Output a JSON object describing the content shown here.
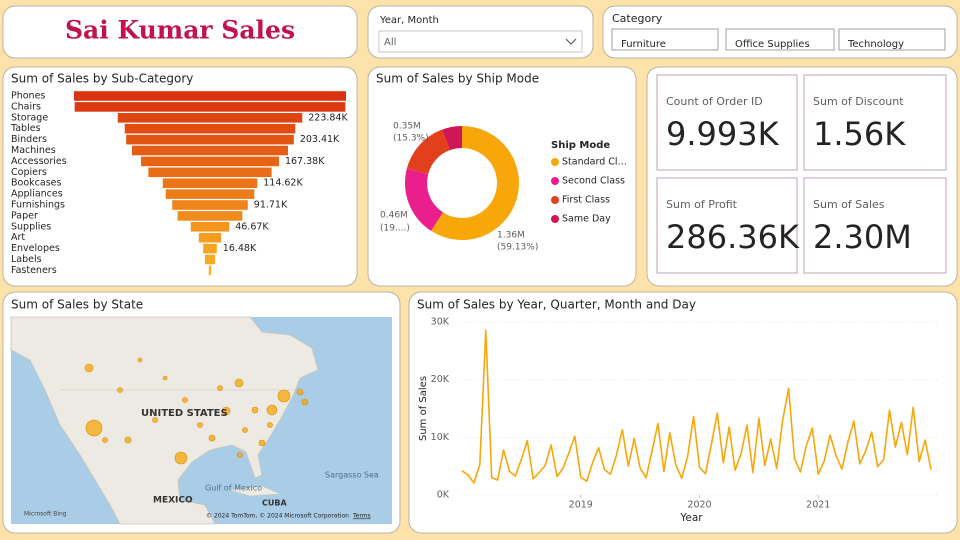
{
  "header": {
    "title": "Sai Kumar Sales"
  },
  "filters": {
    "year_month": {
      "label": "Year, Month",
      "value": "All"
    },
    "category": {
      "label": "Category",
      "options": [
        "Furniture",
        "Office Supplies",
        "Technology"
      ]
    }
  },
  "chart_data": [
    {
      "type": "funnel",
      "title": "Sum of Sales by Sub-Category",
      "categories": [
        "Phones",
        "Chairs",
        "Storage",
        "Tables",
        "Binders",
        "Machines",
        "Accessories",
        "Copiers",
        "Bookcases",
        "Appliances",
        "Furnishings",
        "Paper",
        "Supplies",
        "Art",
        "Envelopes",
        "Labels",
        "Fasteners"
      ],
      "values": [
        330010,
        328450,
        223840,
        206970,
        203410,
        189240,
        167380,
        149530,
        114620,
        107530,
        91710,
        78480,
        46670,
        27120,
        16480,
        12490,
        3020
      ],
      "value_labels": [
        null,
        null,
        "223.84K",
        null,
        "203.41K",
        null,
        "167.38K",
        null,
        "114.62K",
        null,
        "91.71K",
        null,
        "46.67K",
        null,
        "16.48K",
        null,
        null
      ],
      "colors": [
        "#d9340f",
        "#dc3a10",
        "#df4511",
        "#e14d12",
        "#e35413",
        "#e55c14",
        "#e76415",
        "#e96c16",
        "#eb7418",
        "#ed7c19",
        "#ef841b",
        "#f18c1c",
        "#f3951e",
        "#f49d1f",
        "#f5a521",
        "#f6ac22",
        "#f7b324"
      ]
    },
    {
      "type": "donut",
      "title": "Sum of Sales by Ship Mode",
      "legend_title": "Ship Mode",
      "categories": [
        "Standard Cl…",
        "Second Class",
        "First Class",
        "Same Day"
      ],
      "values": [
        1.36,
        0.46,
        0.35,
        0.13
      ],
      "value_labels": [
        "1.36M",
        "0.46M",
        "0.35M",
        null
      ],
      "percent_labels": [
        "(59.13%)",
        "(19....)",
        "(15.3%)",
        null
      ],
      "colors": [
        "#f7a70a",
        "#ea1e8c",
        "#e2401b",
        "#d01558"
      ]
    },
    {
      "type": "line",
      "title": "Sum of Sales by Year, Quarter, Month and Day",
      "x_label": "Year",
      "y_label": "Sum of Sales",
      "color": "#f7a70a",
      "x": [
        2018,
        2018.05,
        2018.1,
        2018.15,
        2018.2,
        2018.25,
        2018.3,
        2018.35,
        2018.4,
        2018.45,
        2018.5,
        2018.55,
        2018.6,
        2018.65,
        2018.7,
        2018.75,
        2018.8,
        2018.85,
        2018.9,
        2018.95,
        2019,
        2019.05,
        2019.1,
        2019.15,
        2019.2,
        2019.25,
        2019.3,
        2019.35,
        2019.4,
        2019.45,
        2019.5,
        2019.55,
        2019.6,
        2019.65,
        2019.7,
        2019.75,
        2019.8,
        2019.85,
        2019.9,
        2019.95,
        2020,
        2020.05,
        2020.1,
        2020.15,
        2020.2,
        2020.25,
        2020.3,
        2020.35,
        2020.4,
        2020.45,
        2020.5,
        2020.55,
        2020.6,
        2020.65,
        2020.7,
        2020.75,
        2020.8,
        2020.85,
        2020.9,
        2020.95,
        2021,
        2021.05,
        2021.1,
        2021.15,
        2021.2,
        2021.25,
        2021.3,
        2021.35,
        2021.4,
        2021.45,
        2021.5,
        2021.55,
        2021.6,
        2021.65,
        2021.7,
        2021.75,
        2021.8,
        2021.85,
        2021.9,
        2021.95
      ],
      "values": [
        4200,
        3500,
        2100,
        5200,
        28500,
        3000,
        2600,
        7800,
        4100,
        3300,
        6200,
        9400,
        2800,
        3900,
        5100,
        8700,
        3200,
        4600,
        7300,
        10200,
        3100,
        2400,
        5600,
        8200,
        4400,
        3600,
        6900,
        11300,
        5000,
        9800,
        4700,
        3000,
        7600,
        12400,
        4100,
        10800,
        5300,
        2900,
        6700,
        13600,
        4800,
        3700,
        8800,
        14200,
        5600,
        11800,
        4300,
        7200,
        12100,
        3900,
        13300,
        5100,
        9700,
        4600,
        12900,
        18500,
        6300,
        4000,
        8600,
        11600,
        3600,
        5900,
        10400,
        6800,
        4500,
        9200,
        12800,
        5400,
        7700,
        10900,
        4900,
        6100,
        14700,
        8300,
        12600,
        7000,
        15200,
        5800,
        9500,
        4400
      ],
      "xlim": [
        2018,
        2022
      ],
      "ylim": [
        0,
        30000
      ],
      "xticks": [
        2019,
        2020,
        2021
      ],
      "yticks": [
        {
          "value": 0,
          "label": "0K"
        },
        {
          "value": 10000,
          "label": "10K"
        },
        {
          "value": 20000,
          "label": "20K"
        },
        {
          "value": 30000,
          "label": "30K"
        }
      ],
      "grid": true
    }
  ],
  "cards": [
    {
      "label": "Count of Order ID",
      "value": "9.993K"
    },
    {
      "label": "Sum of Discount",
      "value": "1.56K"
    },
    {
      "label": "Sum of Profit",
      "value": "286.36K"
    },
    {
      "label": "Sum of Sales",
      "value": "2.30M"
    }
  ],
  "map": {
    "title": "Sum of Sales by State",
    "labels": [
      "UNITED STATES",
      "MEXICO",
      "Gulf of Mexico",
      "Sargasso Sea",
      "CUBA"
    ],
    "brand": "Microsoft Bing",
    "attribution": "© 2024 TomTom, © 2024 Microsoft Corporation",
    "terms": "Terms"
  }
}
